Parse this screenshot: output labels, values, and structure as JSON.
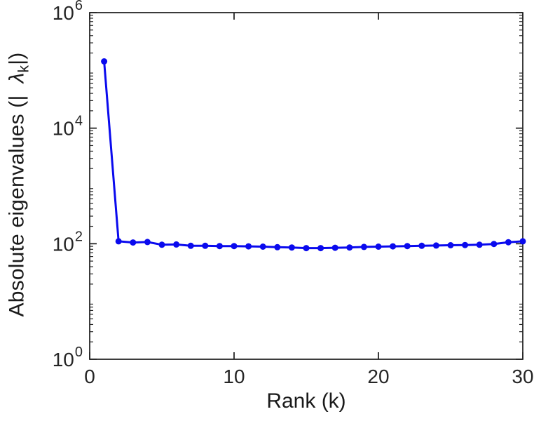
{
  "figure": {
    "background": "#ffffff",
    "axis_color": "#262626",
    "tick_label_color": "#262626",
    "label_color": "#1a1a1a"
  },
  "chart_data": {
    "type": "line",
    "title": "",
    "xlabel": "Rank (k)",
    "ylabel": "Absolute eigenvalues (|λk|)",
    "ylabel_parts": {
      "prefix": "Absolute eigenvalues (|",
      "spacer": "  ",
      "symbol": "λ",
      "subscript": "k",
      "suffix": "|)"
    },
    "x": [
      1,
      2,
      3,
      4,
      5,
      6,
      7,
      8,
      9,
      10,
      11,
      12,
      13,
      14,
      15,
      16,
      17,
      18,
      19,
      20,
      21,
      22,
      23,
      24,
      25,
      26,
      27,
      28,
      29,
      30
    ],
    "values": [
      143000,
      110,
      105,
      107,
      96,
      97,
      92,
      92,
      91,
      91,
      90,
      89,
      87,
      86,
      84,
      84,
      85,
      86,
      88,
      89,
      90,
      91,
      92,
      93,
      94,
      95,
      96,
      99,
      106,
      110
    ],
    "xlim": [
      0,
      30
    ],
    "ylim_exponents": [
      0,
      6
    ],
    "yscale": "log",
    "xticks": [
      0,
      10,
      20,
      30
    ],
    "ytick_exponents": [
      0,
      2,
      4,
      6
    ],
    "grid": false,
    "legend": null,
    "line_color": "#0a0aee",
    "marker": "circle",
    "marker_radius": 4.5,
    "line_width": 3
  }
}
